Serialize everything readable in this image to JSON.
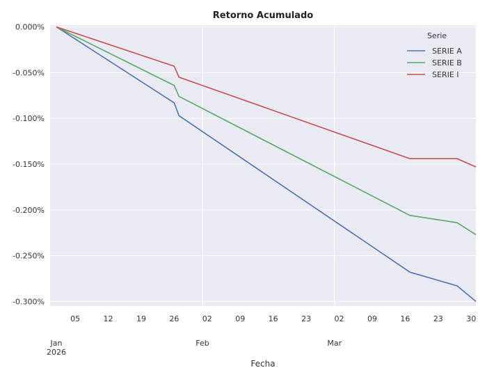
{
  "chart_data": {
    "type": "line",
    "title": "Retorno Acumulado",
    "xlabel": "Fecha",
    "ylabel": "",
    "x": [
      "2026-01-01",
      "2026-01-26",
      "2026-01-27",
      "2026-03-17",
      "2026-03-27",
      "2026-03-31"
    ],
    "ylim": [
      -0.305,
      0.002
    ],
    "xlim": [
      "2026-01-01",
      "2026-03-31"
    ],
    "yticks": [
      0.0,
      -0.05,
      -0.1,
      -0.15,
      -0.2,
      -0.25,
      -0.3
    ],
    "ytick_labels": [
      "0.000%",
      "-0.050%",
      "-0.100%",
      "-0.150%",
      "-0.200%",
      "-0.250%",
      "-0.300%"
    ],
    "xticks": [
      {
        "date": "2026-01-01",
        "label": "Jan\n2026"
      },
      {
        "date": "2026-01-05",
        "label": "05"
      },
      {
        "date": "2026-01-12",
        "label": "12"
      },
      {
        "date": "2026-01-19",
        "label": "19"
      },
      {
        "date": "2026-01-26",
        "label": "26"
      },
      {
        "date": "2026-02-01",
        "label": "Feb"
      },
      {
        "date": "2026-02-02",
        "label": "02"
      },
      {
        "date": "2026-02-09",
        "label": "09"
      },
      {
        "date": "2026-02-16",
        "label": "16"
      },
      {
        "date": "2026-02-23",
        "label": "23"
      },
      {
        "date": "2026-03-01",
        "label": "Mar"
      },
      {
        "date": "2026-03-02",
        "label": "02"
      },
      {
        "date": "2026-03-09",
        "label": "09"
      },
      {
        "date": "2026-03-16",
        "label": "16"
      },
      {
        "date": "2026-03-23",
        "label": "23"
      },
      {
        "date": "2026-03-30",
        "label": "30"
      }
    ],
    "grid": true,
    "legend": {
      "title": "Serie",
      "placement": "top-right"
    },
    "series": [
      {
        "name": "SERIE A",
        "color": "#4c72b0",
        "values": [
          0.0,
          -0.083,
          -0.097,
          -0.268,
          -0.283,
          -0.3
        ]
      },
      {
        "name": "SERIE B",
        "color": "#55a868",
        "values": [
          0.0,
          -0.064,
          -0.076,
          -0.206,
          -0.214,
          -0.227
        ]
      },
      {
        "name": "SERIE I",
        "color": "#c44e52",
        "values": [
          0.0,
          -0.043,
          -0.055,
          -0.144,
          -0.144,
          -0.153
        ]
      }
    ]
  }
}
